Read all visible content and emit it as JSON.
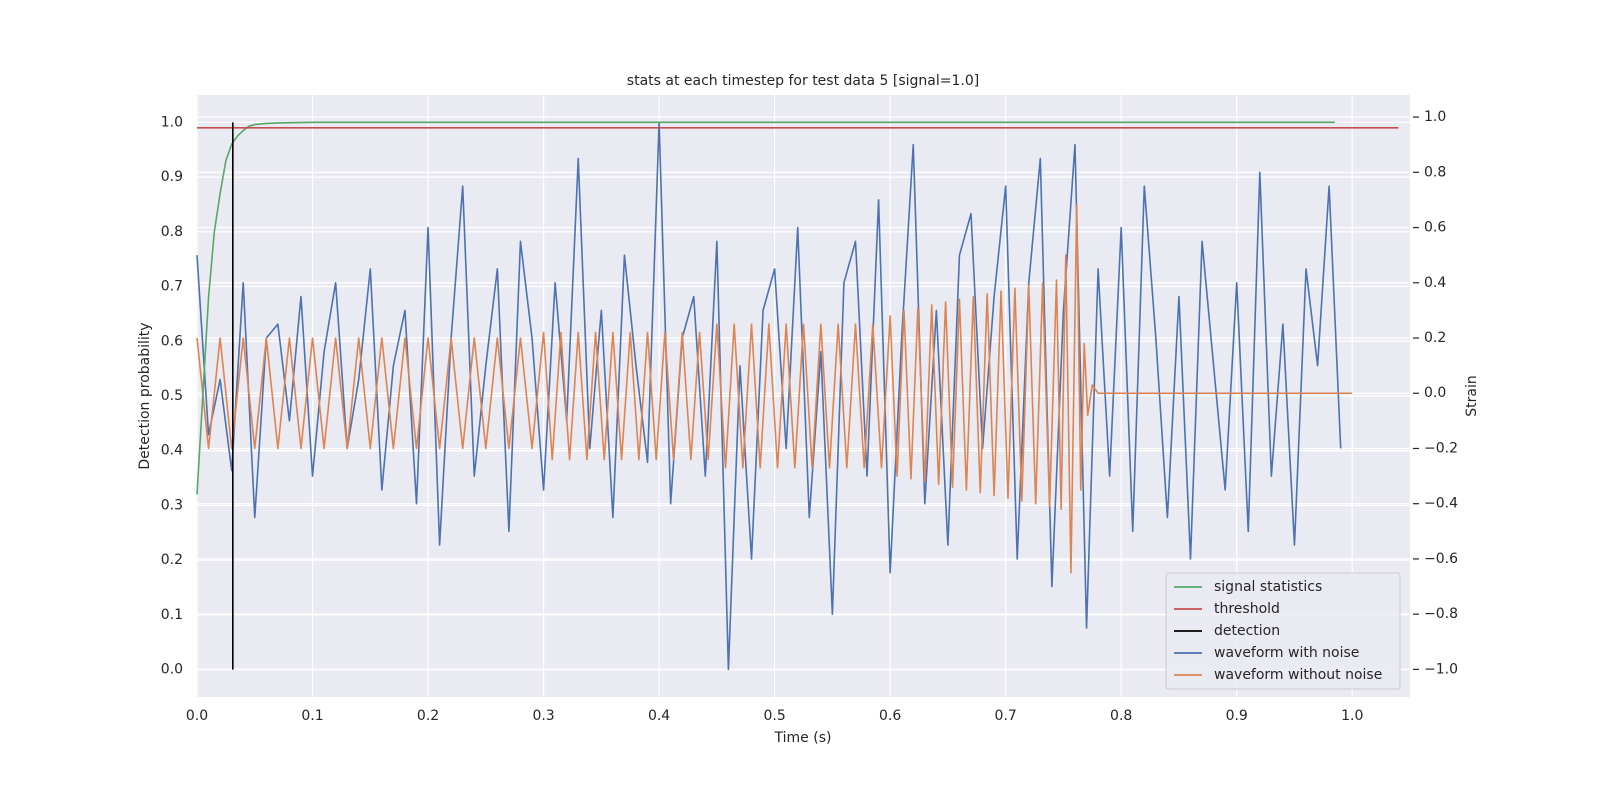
{
  "chart_data": {
    "type": "line",
    "title": "stats at each timestep for test data 5 [signal=1.0]",
    "x_label": "Time (s)",
    "y_label": "Detection probability",
    "y2_label": "Strain",
    "xlim": [
      0,
      1.05
    ],
    "ylim": [
      -0.05,
      1.05
    ],
    "y2lim": [
      -1.1,
      1.08
    ],
    "xticks": [
      {
        "value": 0,
        "label": "0.0"
      },
      0.1,
      0.2,
      0.3,
      0.4,
      0.5,
      0.6,
      0.7,
      0.8,
      0.9,
      {
        "value": 1,
        "label": "1.0"
      }
    ],
    "yticks": [
      {
        "value": 0,
        "label": "0.0"
      },
      0.1,
      0.2,
      0.3,
      0.4,
      0.5,
      0.6,
      0.7,
      0.8,
      0.9,
      {
        "value": 1,
        "label": "1.0"
      }
    ],
    "y2ticks": [
      {
        "value": -1,
        "label": "−1.0"
      },
      {
        "value": -0.8,
        "label": "−0.8"
      },
      {
        "value": -0.6,
        "label": "−0.6"
      },
      {
        "value": -0.4,
        "label": "−0.4"
      },
      {
        "value": -0.2,
        "label": "−0.2"
      },
      {
        "value": 0,
        "label": "0.0"
      },
      0.2,
      0.4,
      0.6,
      0.8,
      {
        "value": 1,
        "label": "1.0"
      }
    ],
    "grid": true,
    "legend": "lower right",
    "series": [
      {
        "name": "signal statistics",
        "color": "#55a868",
        "axis": "y",
        "x": [
          0,
          0.005,
          0.01,
          0.015,
          0.02,
          0.025,
          0.03,
          0.035,
          0.04,
          0.045,
          0.05,
          0.06,
          0.07,
          0.1,
          0.985
        ],
        "values": [
          0.32,
          0.5,
          0.68,
          0.8,
          0.87,
          0.93,
          0.96,
          0.975,
          0.985,
          0.993,
          0.996,
          0.998,
          0.999,
          1.0,
          1.0
        ]
      },
      {
        "name": "threshold",
        "color": "#c44e52",
        "axis": "y",
        "x": [
          0,
          1.04
        ],
        "values": [
          0.99,
          0.99
        ]
      },
      {
        "name": "detection",
        "color": "#000000",
        "axis": "y",
        "x": [
          0.031,
          0.031
        ],
        "values": [
          0,
          1
        ]
      },
      {
        "name": "waveform with noise",
        "color": "#4c72b0",
        "axis": "y2",
        "x": [
          0,
          0.01,
          0.02,
          0.03,
          0.04,
          0.05,
          0.06,
          0.07,
          0.08,
          0.09,
          0.1,
          0.11,
          0.12,
          0.13,
          0.14,
          0.15,
          0.16,
          0.17,
          0.18,
          0.19,
          0.2,
          0.21,
          0.22,
          0.23,
          0.24,
          0.25,
          0.26,
          0.27,
          0.28,
          0.29,
          0.3,
          0.31,
          0.32,
          0.33,
          0.34,
          0.35,
          0.36,
          0.37,
          0.38,
          0.39,
          0.4,
          0.41,
          0.42,
          0.43,
          0.44,
          0.45,
          0.46,
          0.47,
          0.48,
          0.49,
          0.5,
          0.51,
          0.52,
          0.53,
          0.54,
          0.55,
          0.56,
          0.57,
          0.58,
          0.59,
          0.6,
          0.61,
          0.62,
          0.63,
          0.64,
          0.65,
          0.66,
          0.67,
          0.68,
          0.69,
          0.7,
          0.71,
          0.72,
          0.73,
          0.74,
          0.75,
          0.76,
          0.77,
          0.78,
          0.79,
          0.8,
          0.81,
          0.82,
          0.83,
          0.84,
          0.85,
          0.86,
          0.87,
          0.88,
          0.89,
          0.9,
          0.91,
          0.92,
          0.93,
          0.94,
          0.95,
          0.96,
          0.97,
          0.98,
          0.99
        ],
        "values": [
          0.5,
          -0.15,
          0.05,
          -0.28,
          0.4,
          -0.45,
          0.2,
          0.25,
          -0.1,
          0.35,
          -0.3,
          0.15,
          0.4,
          -0.2,
          0.05,
          0.45,
          -0.35,
          0.1,
          0.3,
          -0.4,
          0.6,
          -0.55,
          0.2,
          0.75,
          -0.3,
          0.1,
          0.45,
          -0.5,
          0.55,
          0.2,
          -0.35,
          0.4,
          -0.1,
          0.85,
          -0.2,
          0.3,
          -0.45,
          0.5,
          0.1,
          -0.25,
          0.98,
          -0.4,
          0.2,
          0.35,
          -0.3,
          0.55,
          -1.0,
          0.1,
          -0.6,
          0.3,
          0.45,
          -0.2,
          0.6,
          -0.45,
          0.15,
          -0.8,
          0.4,
          0.55,
          -0.3,
          0.7,
          -0.65,
          0.2,
          0.9,
          -0.4,
          0.3,
          -0.55,
          0.5,
          0.65,
          -0.2,
          0.35,
          0.75,
          -0.6,
          0.4,
          0.85,
          -0.7,
          0.3,
          0.9,
          -0.85,
          0.45,
          -0.3,
          0.6,
          -0.5,
          0.75,
          0.2,
          -0.45,
          0.35,
          -0.6,
          0.55,
          0.1,
          -0.35,
          0.4,
          -0.5,
          0.8,
          -0.3,
          0.25,
          -0.55,
          0.45,
          0.1,
          0.75,
          -0.2
        ]
      },
      {
        "name": "waveform without noise",
        "color": "#dd8452",
        "axis": "y2",
        "x": [
          0,
          0.01,
          0.02,
          0.03,
          0.04,
          0.05,
          0.06,
          0.07,
          0.08,
          0.09,
          0.1,
          0.11,
          0.12,
          0.13,
          0.14,
          0.15,
          0.16,
          0.17,
          0.18,
          0.19,
          0.2,
          0.21,
          0.22,
          0.23,
          0.24,
          0.25,
          0.26,
          0.27,
          0.28,
          0.29,
          0.3,
          0.3075,
          0.315,
          0.3225,
          0.33,
          0.3375,
          0.345,
          0.3525,
          0.36,
          0.3675,
          0.375,
          0.3825,
          0.39,
          0.3975,
          0.405,
          0.4125,
          0.42,
          0.4275,
          0.435,
          0.4425,
          0.45,
          0.4575,
          0.465,
          0.4725,
          0.48,
          0.4875,
          0.495,
          0.5025,
          0.51,
          0.5175,
          0.525,
          0.5325,
          0.54,
          0.5475,
          0.555,
          0.5625,
          0.57,
          0.5775,
          0.585,
          0.5925,
          0.6,
          0.606,
          0.612,
          0.618,
          0.624,
          0.63,
          0.636,
          0.642,
          0.648,
          0.654,
          0.66,
          0.666,
          0.672,
          0.678,
          0.684,
          0.69,
          0.696,
          0.702,
          0.708,
          0.714,
          0.72,
          0.726,
          0.732,
          0.738,
          0.744,
          0.748,
          0.752,
          0.7565,
          0.7615,
          0.765,
          0.768,
          0.771,
          0.775,
          0.78,
          1.0
        ],
        "values": [
          0.2,
          -0.2,
          0.2,
          -0.2,
          0.2,
          -0.2,
          0.2,
          -0.2,
          0.2,
          -0.2,
          0.2,
          -0.2,
          0.2,
          -0.2,
          0.2,
          -0.2,
          0.2,
          -0.2,
          0.2,
          -0.2,
          0.2,
          -0.2,
          0.2,
          -0.2,
          0.2,
          -0.2,
          0.2,
          -0.2,
          0.2,
          -0.2,
          0.22,
          -0.24,
          0.22,
          -0.24,
          0.22,
          -0.24,
          0.22,
          -0.24,
          0.22,
          -0.24,
          0.22,
          -0.24,
          0.22,
          -0.24,
          0.22,
          -0.24,
          0.22,
          -0.24,
          0.22,
          -0.24,
          0.25,
          -0.27,
          0.25,
          -0.27,
          0.25,
          -0.27,
          0.25,
          -0.27,
          0.25,
          -0.27,
          0.25,
          -0.27,
          0.25,
          -0.27,
          0.25,
          -0.27,
          0.25,
          -0.27,
          0.25,
          -0.27,
          0.28,
          -0.3,
          0.3,
          -0.31,
          0.31,
          -0.32,
          0.32,
          -0.33,
          0.33,
          -0.34,
          0.34,
          -0.35,
          0.35,
          -0.36,
          0.36,
          -0.37,
          0.37,
          -0.38,
          0.38,
          -0.39,
          0.39,
          -0.4,
          0.4,
          -0.41,
          0.41,
          -0.42,
          0.5,
          -0.65,
          0.68,
          -0.35,
          0.18,
          -0.08,
          0.03,
          0,
          0
        ]
      }
    ]
  }
}
